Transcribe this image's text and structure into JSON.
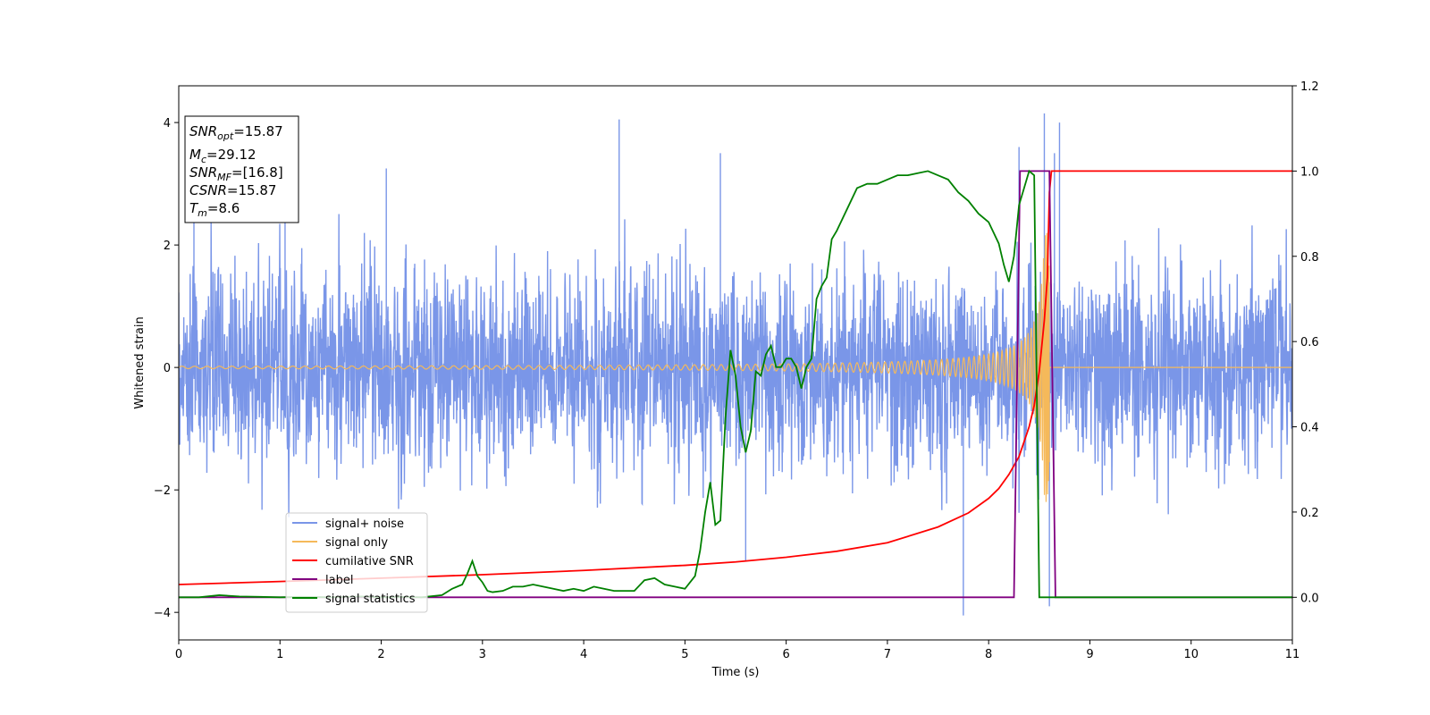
{
  "chart_data": {
    "type": "line",
    "xlabel": "Time (s)",
    "ylabel": "Whitened strain",
    "xlim": [
      0,
      11
    ],
    "ylim": [
      -4.45,
      4.6
    ],
    "y2lim": [
      -0.1,
      1.2
    ],
    "x_ticks": [
      "0",
      "1",
      "2",
      "3",
      "4",
      "5",
      "6",
      "7",
      "8",
      "9",
      "10",
      "11"
    ],
    "y_ticks": [
      "4",
      "2",
      "0",
      "−2",
      "−4"
    ],
    "y2_ticks": [
      "1.2",
      "1.0",
      "0.8",
      "0.6",
      "0.4",
      "0.2",
      "0.0"
    ],
    "info_box": {
      "line1_italic": "SNR",
      "line1_sub": "opt",
      "line1_value": "=15.87",
      "line2_italic": "M",
      "line2_sub": "c",
      "line2_value": "=29.12",
      "line3_italic": "SNR",
      "line3_sub": "MF",
      "line3_value": "=[16.8]",
      "line4_italic": "CSNR",
      "line4_value": "=15.87",
      "line5_italic": "T",
      "line5_sub": "m",
      "line5_value": "=8.6"
    },
    "legend": {
      "placement": "lower-left",
      "entries": [
        "signal+ noise",
        "signal only",
        "cumilative SNR",
        "label",
        "signal statistics"
      ]
    },
    "series": [
      {
        "name": "signal+ noise",
        "axis": "left",
        "color": "#7a96e8",
        "kind": "noise",
        "sigma": 1.0,
        "x_range": [
          0,
          11
        ],
        "peaks": [
          [
            0.15,
            2.7
          ],
          [
            1.05,
            2.6
          ],
          [
            2.05,
            3.25
          ],
          [
            4.35,
            4.05
          ],
          [
            5.35,
            3.5
          ],
          [
            5.6,
            -3.15
          ],
          [
            7.75,
            -4.05
          ],
          [
            8.3,
            3.6
          ],
          [
            8.55,
            4.15
          ],
          [
            8.6,
            -3.9
          ],
          [
            8.7,
            4.0
          ],
          [
            8.65,
            3.5
          ]
        ]
      },
      {
        "name": "signal only",
        "axis": "left",
        "color": "#f5b95a",
        "kind": "chirp",
        "merger_time": 8.6,
        "start_amplitude": 0.02,
        "peak_amplitude": 2.2
      },
      {
        "name": "cumilative SNR",
        "axis": "right",
        "color": "#ff0000",
        "x": [
          0,
          1,
          2,
          3,
          4,
          5,
          5.5,
          6,
          6.5,
          7,
          7.5,
          7.8,
          8.0,
          8.1,
          8.2,
          8.3,
          8.4,
          8.45,
          8.5,
          8.55,
          8.58,
          8.6,
          8.62,
          11
        ],
        "y": [
          0.03,
          0.037,
          0.045,
          0.053,
          0.063,
          0.075,
          0.083,
          0.094,
          0.108,
          0.128,
          0.165,
          0.198,
          0.232,
          0.255,
          0.288,
          0.33,
          0.4,
          0.45,
          0.53,
          0.65,
          0.75,
          0.95,
          1.0,
          1.0
        ]
      },
      {
        "name": "label",
        "axis": "right",
        "color": "#800080",
        "x": [
          0,
          8.25,
          8.31,
          8.6,
          8.66,
          11
        ],
        "y": [
          0,
          0,
          1,
          1,
          0,
          0
        ]
      },
      {
        "name": "signal statistics",
        "axis": "right",
        "color": "#008000",
        "x": [
          0,
          0.2,
          0.4,
          0.6,
          0.8,
          1.0,
          1.2,
          1.5,
          1.8,
          2.0,
          2.2,
          2.4,
          2.6,
          2.7,
          2.8,
          2.85,
          2.9,
          2.95,
          3.0,
          3.05,
          3.1,
          3.2,
          3.3,
          3.4,
          3.5,
          3.6,
          3.7,
          3.8,
          3.9,
          4.0,
          4.1,
          4.2,
          4.3,
          4.4,
          4.5,
          4.6,
          4.7,
          4.8,
          4.9,
          5.0,
          5.1,
          5.15,
          5.2,
          5.25,
          5.3,
          5.35,
          5.4,
          5.45,
          5.5,
          5.55,
          5.6,
          5.65,
          5.7,
          5.75,
          5.8,
          5.85,
          5.9,
          5.95,
          6.0,
          6.05,
          6.1,
          6.15,
          6.2,
          6.25,
          6.3,
          6.35,
          6.4,
          6.45,
          6.5,
          6.6,
          6.7,
          6.8,
          6.9,
          7.0,
          7.1,
          7.2,
          7.3,
          7.4,
          7.5,
          7.6,
          7.7,
          7.8,
          7.9,
          8.0,
          8.1,
          8.15,
          8.2,
          8.25,
          8.3,
          8.35,
          8.4,
          8.45,
          8.5,
          8.55,
          8.6,
          8.63,
          8.66,
          11
        ],
        "y": [
          0.0,
          0.0,
          0.005,
          0.002,
          0.001,
          0.0,
          0.001,
          0.0,
          0.002,
          0.0,
          0.001,
          0.0,
          0.005,
          0.02,
          0.03,
          0.055,
          0.085,
          0.05,
          0.035,
          0.015,
          0.012,
          0.015,
          0.025,
          0.025,
          0.03,
          0.025,
          0.02,
          0.015,
          0.02,
          0.015,
          0.025,
          0.02,
          0.015,
          0.015,
          0.015,
          0.04,
          0.045,
          0.03,
          0.025,
          0.02,
          0.05,
          0.11,
          0.2,
          0.27,
          0.17,
          0.18,
          0.42,
          0.58,
          0.52,
          0.4,
          0.34,
          0.39,
          0.53,
          0.52,
          0.57,
          0.59,
          0.54,
          0.54,
          0.56,
          0.56,
          0.54,
          0.49,
          0.54,
          0.56,
          0.7,
          0.73,
          0.75,
          0.84,
          0.86,
          0.91,
          0.96,
          0.97,
          0.97,
          0.98,
          0.99,
          0.99,
          0.995,
          1.0,
          0.99,
          0.98,
          0.95,
          0.93,
          0.9,
          0.88,
          0.83,
          0.78,
          0.74,
          0.8,
          0.92,
          0.96,
          1.0,
          0.99,
          0.0,
          0.0,
          0.0,
          0.0,
          0.0,
          0.0
        ]
      }
    ]
  }
}
